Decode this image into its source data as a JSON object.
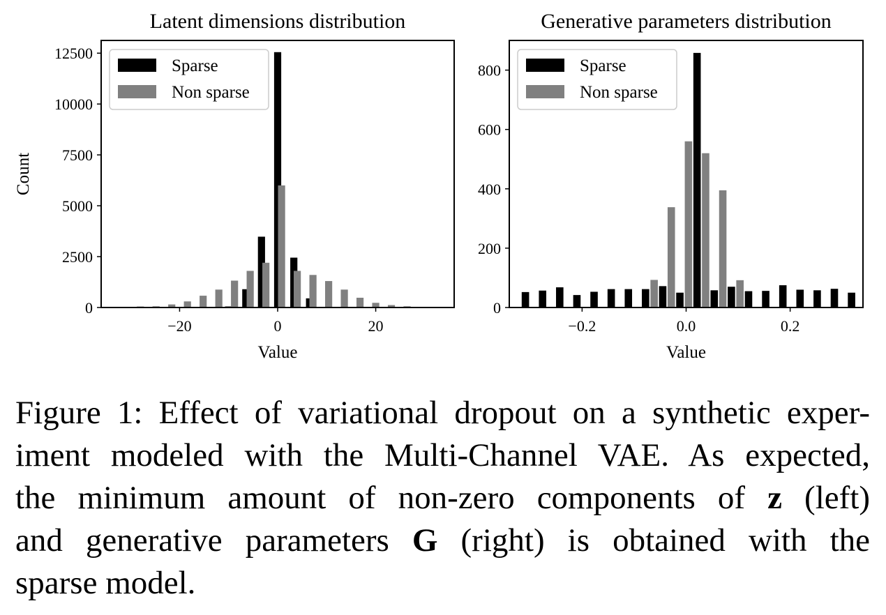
{
  "chart_data": [
    {
      "type": "bar",
      "title": "Latent dimensions distribution",
      "xlabel": "Value",
      "ylabel": "Count",
      "xlim": [
        -36,
        36
      ],
      "ylim": [
        0,
        13125
      ],
      "xticks": [
        -20,
        0,
        20
      ],
      "xtick_labels": [
        "−20",
        "0",
        "20"
      ],
      "yticks": [
        0,
        2500,
        5000,
        7500,
        10000,
        12500
      ],
      "ytick_labels": [
        "0",
        "2500",
        "5000",
        "7500",
        "10000",
        "12500"
      ],
      "grid": false,
      "legend": "top-left",
      "series": [
        {
          "name": "Sparse",
          "color": "#000000",
          "x": [
            -10.0,
            -6.5,
            -3.3,
            0.0,
            3.3,
            6.5
          ],
          "values": [
            50,
            900,
            3480,
            12550,
            2450,
            450
          ]
        },
        {
          "name": "Non sparse",
          "color": "#808080",
          "x": [
            -28.0,
            -24.8,
            -21.6,
            -18.4,
            -15.2,
            -12.0,
            -8.8,
            -5.6,
            -2.4,
            0.8,
            4.0,
            7.2,
            10.4,
            13.6,
            16.8,
            20.0,
            23.2,
            26.4
          ],
          "values": [
            50,
            60,
            150,
            300,
            580,
            880,
            1320,
            1800,
            2200,
            6000,
            1800,
            1600,
            1300,
            880,
            480,
            230,
            120,
            60
          ]
        }
      ]
    },
    {
      "type": "bar",
      "title": "Generative parameters distribution",
      "xlabel": "Value",
      "ylabel": "",
      "xlim": [
        -0.34,
        0.34
      ],
      "ylim": [
        0,
        900
      ],
      "xticks": [
        -0.2,
        0.0,
        0.2
      ],
      "xtick_labels": [
        "−0.2",
        "0.0",
        "0.2"
      ],
      "yticks": [
        0,
        200,
        400,
        600,
        800
      ],
      "ytick_labels": [
        "0",
        "200",
        "400",
        "600",
        "800"
      ],
      "grid": false,
      "legend": "top-left",
      "series": [
        {
          "name": "Sparse",
          "color": "#000000",
          "x": [
            -0.309,
            -0.276,
            -0.243,
            -0.21,
            -0.177,
            -0.144,
            -0.111,
            -0.078,
            -0.045,
            -0.012,
            0.021,
            0.054,
            0.087,
            0.12,
            0.153,
            0.186,
            0.219,
            0.252,
            0.285,
            0.318
          ],
          "values": [
            52,
            57,
            68,
            42,
            53,
            62,
            62,
            62,
            72,
            50,
            858,
            58,
            70,
            55,
            56,
            75,
            60,
            58,
            63,
            50
          ]
        },
        {
          "name": "Non sparse",
          "color": "#808080",
          "x": [
            -0.0615,
            -0.0285,
            0.0045,
            0.0375,
            0.0705,
            0.1035
          ],
          "values": [
            93,
            338,
            560,
            520,
            395,
            92
          ]
        }
      ]
    }
  ],
  "caption": {
    "lines": [
      [
        "Figure 1: Effect of variational dropout on a synthetic exper-"
      ],
      [
        "iment modeled with the Multi-Channel VAE. As expected,"
      ],
      [
        "the minimum amount of non-zero components of ",
        "z",
        " (left)"
      ],
      [
        "and generative parameters ",
        "G",
        " (right) is obtained with the"
      ],
      [
        "sparse model."
      ]
    ]
  }
}
